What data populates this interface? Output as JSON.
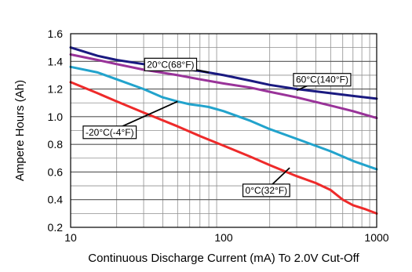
{
  "chart_data": {
    "type": "line",
    "title": "",
    "xlabel": "Continuous Discharge Current (mA) To 2.0V Cut-Off",
    "ylabel": "Ampere Hours (Ah)",
    "xscale": "log",
    "xlim": [
      10,
      1000
    ],
    "ylim": [
      0.2,
      1.6
    ],
    "x_ticks": [
      10,
      100,
      1000
    ],
    "x_tick_labels": [
      "10",
      "100",
      "1000"
    ],
    "y_ticks": [
      0.2,
      0.4,
      0.6,
      0.8,
      1.0,
      1.2,
      1.4,
      1.6
    ],
    "y_tick_labels": [
      "0.2",
      "0.4",
      "0.6",
      "0.8",
      "1.0",
      "1.2",
      "1.4",
      "1.6"
    ],
    "grid": true,
    "legend": "none",
    "series": [
      {
        "name": "20°C(68°F)",
        "color": "#1a1a80",
        "points": [
          [
            10,
            1.5
          ],
          [
            15,
            1.44
          ],
          [
            20,
            1.41
          ],
          [
            30,
            1.38
          ],
          [
            50,
            1.35
          ],
          [
            70,
            1.33
          ],
          [
            100,
            1.3
          ],
          [
            150,
            1.26
          ],
          [
            200,
            1.23
          ],
          [
            300,
            1.2
          ],
          [
            500,
            1.17
          ],
          [
            700,
            1.15
          ],
          [
            1000,
            1.13
          ]
        ]
      },
      {
        "name": "60°C(140°F)",
        "color": "#993399",
        "points": [
          [
            10,
            1.45
          ],
          [
            15,
            1.41
          ],
          [
            20,
            1.38
          ],
          [
            30,
            1.34
          ],
          [
            50,
            1.3
          ],
          [
            70,
            1.27
          ],
          [
            100,
            1.24
          ],
          [
            150,
            1.21
          ],
          [
            200,
            1.18
          ],
          [
            300,
            1.14
          ],
          [
            500,
            1.08
          ],
          [
            700,
            1.04
          ],
          [
            1000,
            0.99
          ]
        ]
      },
      {
        "name": "-20°C(-4°F)",
        "color": "#22a3cc",
        "points": [
          [
            10,
            1.36
          ],
          [
            15,
            1.32
          ],
          [
            20,
            1.27
          ],
          [
            30,
            1.2
          ],
          [
            40,
            1.14
          ],
          [
            50,
            1.11
          ],
          [
            60,
            1.09
          ],
          [
            70,
            1.08
          ],
          [
            80,
            1.07
          ],
          [
            100,
            1.04
          ],
          [
            150,
            0.97
          ],
          [
            200,
            0.91
          ],
          [
            300,
            0.84
          ],
          [
            500,
            0.75
          ],
          [
            700,
            0.68
          ],
          [
            1000,
            0.62
          ]
        ]
      },
      {
        "name": "0°C(32°F)",
        "color": "#ee2a2a",
        "points": [
          [
            10,
            1.25
          ],
          [
            15,
            1.17
          ],
          [
            20,
            1.11
          ],
          [
            30,
            1.03
          ],
          [
            50,
            0.93
          ],
          [
            70,
            0.86
          ],
          [
            100,
            0.79
          ],
          [
            150,
            0.71
          ],
          [
            200,
            0.65
          ],
          [
            300,
            0.57
          ],
          [
            400,
            0.52
          ],
          [
            500,
            0.47
          ],
          [
            600,
            0.4
          ],
          [
            700,
            0.36
          ],
          [
            850,
            0.33
          ],
          [
            1000,
            0.3
          ]
        ]
      }
    ],
    "annotations": [
      {
        "text": "20°C(68°F)",
        "series": "20°C(68°F)",
        "box_at": [
          45,
          1.38
        ],
        "points_to": [
          80,
          1.32
        ]
      },
      {
        "text": "60°C(140°F)",
        "series": "60°C(140°F)",
        "box_at": [
          440,
          1.27
        ],
        "points_to": [
          300,
          1.19
        ]
      },
      {
        "text": "-20°C(-4°F)",
        "series": "-20°C(-4°F)",
        "box_at": [
          18,
          0.89
        ],
        "points_to": [
          50,
          1.11
        ]
      },
      {
        "text": "0°C(32°F)",
        "series": "0°C(32°F)",
        "box_at": [
          190,
          0.47
        ],
        "points_to": [
          270,
          0.63
        ]
      }
    ]
  }
}
